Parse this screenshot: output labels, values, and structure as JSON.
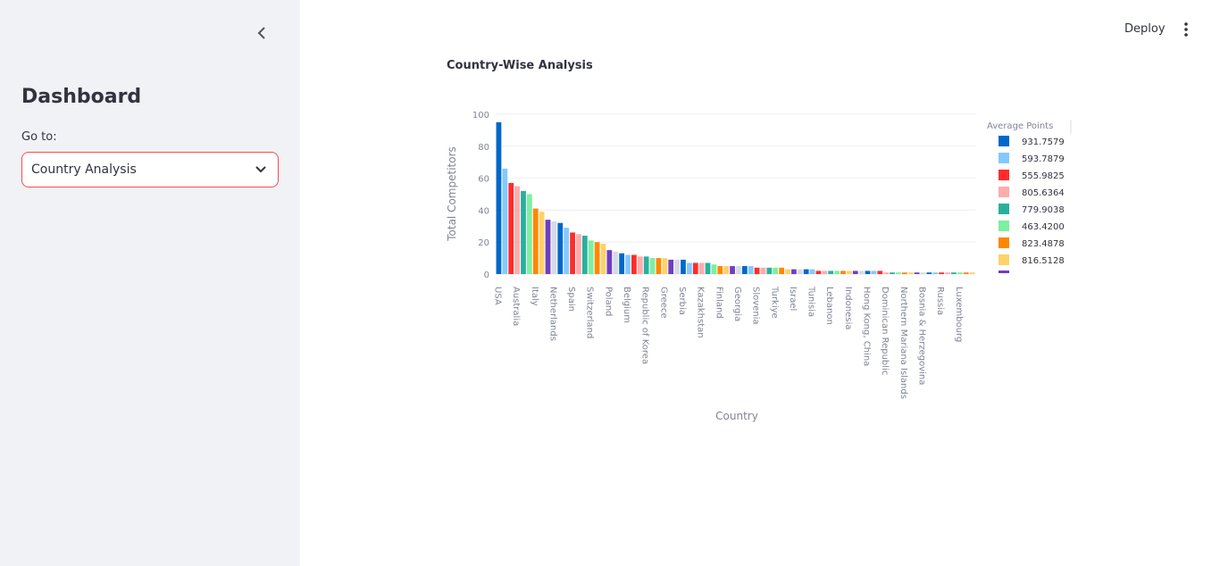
{
  "sidebar": {
    "title": "Dashboard",
    "select_label": "Go to:",
    "select_value": "Country Analysis"
  },
  "header": {
    "deploy": "Deploy"
  },
  "chart_data": {
    "type": "bar",
    "title": "Country-Wise Analysis",
    "xlabel": "Country",
    "ylabel": "Total Competitors",
    "categories": [
      "USA",
      null,
      null,
      "Australia",
      null,
      null,
      "Italy",
      null,
      null,
      "Netherlands",
      null,
      null,
      "Spain",
      null,
      null,
      "Switzerland",
      null,
      null,
      "Poland",
      null,
      null,
      "Belgium",
      null,
      null,
      "Republic of Korea",
      null,
      null,
      "Greece",
      null,
      null,
      "Serbia",
      null,
      null,
      "Kazakhstan",
      null,
      null,
      "Finland",
      null,
      null,
      "Georgia",
      null,
      null,
      "Slovenia",
      null,
      null,
      "Turkiye",
      null,
      null,
      "Israel",
      null,
      null,
      "Tunisia",
      null,
      null,
      "Lebanon",
      null,
      null,
      "Indonesia",
      null,
      null,
      "Hong Kong, China",
      null,
      null,
      "Dominican Republic",
      null,
      null,
      "Northern Mariana Islands",
      null,
      null,
      "Bosnia & Herzegovina",
      null,
      null,
      "Russia",
      null,
      null,
      "Luxembourg",
      null,
      null
    ],
    "values": [
      95,
      66,
      57,
      55,
      52,
      50,
      41,
      39,
      34,
      33,
      32,
      29,
      26,
      25,
      24,
      21,
      20,
      19,
      15,
      14,
      13,
      12,
      12,
      11,
      11,
      10,
      10,
      10,
      9,
      9,
      9,
      7,
      7,
      7,
      7,
      6,
      5,
      5,
      5,
      5,
      5,
      5,
      4,
      4,
      4,
      4,
      4,
      3,
      3,
      3,
      3,
      3,
      2,
      2,
      2,
      2,
      2,
      2,
      2,
      2,
      2,
      2,
      2,
      1,
      1,
      1,
      1,
      1,
      1,
      1,
      1,
      1,
      1,
      1,
      1,
      1,
      1,
      1
    ],
    "ylim": [
      0,
      100
    ],
    "yticks": [
      0,
      20,
      40,
      60,
      80,
      100
    ],
    "grid": true,
    "palette": [
      "#0068c9",
      "#83c9ff",
      "#ff2b2b",
      "#ffabab",
      "#29b09d",
      "#7defa1",
      "#ff8700",
      "#ffd16a",
      "#6d3fc0",
      "#d5dae5"
    ],
    "legend": {
      "title": "Average Points",
      "entries": [
        {
          "name": "931.7579",
          "color": "#0068c9"
        },
        {
          "name": "593.7879",
          "color": "#83c9ff"
        },
        {
          "name": "555.9825",
          "color": "#ff2b2b"
        },
        {
          "name": "805.6364",
          "color": "#ffabab"
        },
        {
          "name": "779.9038",
          "color": "#29b09d"
        },
        {
          "name": "463.4200",
          "color": "#7defa1"
        },
        {
          "name": "823.4878",
          "color": "#ff8700"
        },
        {
          "name": "816.5128",
          "color": "#ffd16a"
        }
      ]
    }
  }
}
